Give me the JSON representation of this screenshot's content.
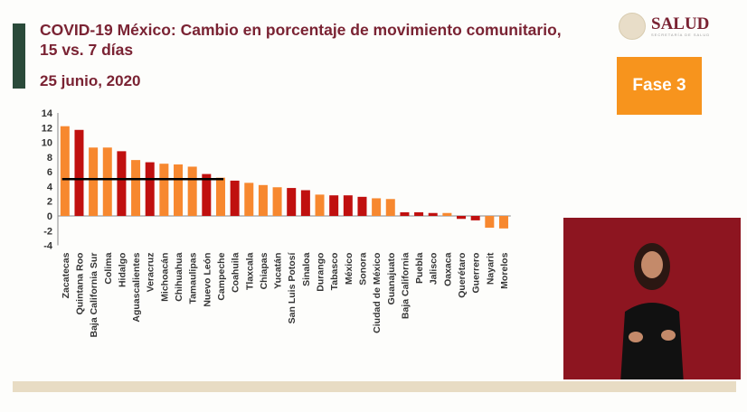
{
  "header": {
    "title": "COVID-19 México: Cambio en porcentaje de movimiento comunitario, 15 vs. 7 días",
    "date": "25 junio, 2020",
    "logo": "SALUD",
    "logo_sub": "SECRETARÍA DE SALUD",
    "phase_badge": "Fase 3"
  },
  "colors": {
    "orange": "#f7882f",
    "red": "#c0100f",
    "title": "#7a2333",
    "badge": "#f7941d"
  },
  "chart_data": {
    "type": "bar",
    "ylim": [
      -4,
      14
    ],
    "yticks": [
      -4,
      -2,
      0,
      2,
      4,
      6,
      8,
      10,
      12,
      14
    ],
    "reference_line": {
      "value": 5,
      "from": "Zacatecas",
      "to": "Campeche"
    },
    "categories": [
      "Zacatecas",
      "Quintana Roo",
      "Baja California Sur",
      "Colima",
      "Hidalgo",
      "Aguascalientes",
      "Veracruz",
      "Michoacán",
      "Chihuahua",
      "Tamaulipas",
      "Nuevo León",
      "Campeche",
      "Coahuila",
      "Tlaxcala",
      "Chiapas",
      "Yucatán",
      "San Luis Potosí",
      "Sinaloa",
      "Durango",
      "Tabasco",
      "México",
      "Sonora",
      "Ciudad de México",
      "Guanajuato",
      "Baja California",
      "Puebla",
      "Jalisco",
      "Oaxaca",
      "Querétaro",
      "Guerrero",
      "Nayarit",
      "Morelos"
    ],
    "values": [
      12.2,
      11.7,
      9.3,
      9.3,
      8.8,
      7.6,
      7.3,
      7.1,
      7.0,
      6.7,
      5.7,
      5.2,
      4.8,
      4.5,
      4.2,
      3.9,
      3.8,
      3.5,
      2.9,
      2.8,
      2.8,
      2.6,
      2.4,
      2.3,
      0.5,
      0.5,
      0.4,
      0.4,
      -0.4,
      -0.6,
      -1.6,
      -1.7
    ],
    "bar_colors": [
      "orange",
      "red",
      "orange",
      "orange",
      "red",
      "orange",
      "red",
      "orange",
      "orange",
      "orange",
      "red",
      "orange",
      "red",
      "orange",
      "orange",
      "orange",
      "red",
      "red",
      "orange",
      "red",
      "red",
      "red",
      "orange",
      "orange",
      "red",
      "red",
      "red",
      "orange",
      "red",
      "red",
      "orange",
      "orange"
    ]
  }
}
